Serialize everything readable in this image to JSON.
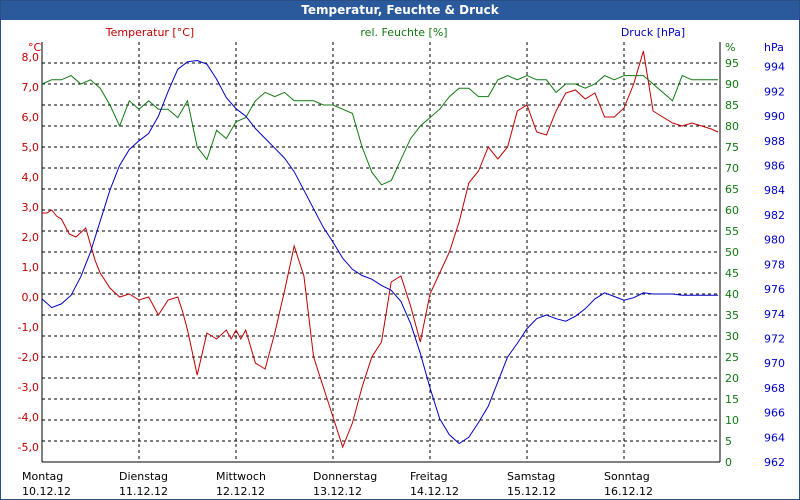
{
  "window": {
    "title": "Temperatur, Feuchte & Druck"
  },
  "colors": {
    "temperature": "#c00000",
    "humidity": "#117a11",
    "pressure": "#0000c8",
    "title_bg": "#2a5a9b"
  },
  "chart_data": {
    "type": "line",
    "title": "Temperatur, Feuchte & Druck",
    "grid": true,
    "x_ticks": [
      {
        "day": "Montag",
        "date": "10.12.12"
      },
      {
        "day": "Dienstag",
        "date": "11.12.12"
      },
      {
        "day": "Mittwoch",
        "date": "12.12.12"
      },
      {
        "day": "Donnerstag",
        "date": "13.12.12"
      },
      {
        "day": "Freitag",
        "date": "14.12.12"
      },
      {
        "day": "Samstag",
        "date": "15.12.12"
      },
      {
        "day": "Sonntag",
        "date": "16.12.12"
      }
    ],
    "axes": {
      "left": {
        "unit": "°C",
        "range": [
          -5.5,
          8.5
        ],
        "ticks": [
          "-5,0",
          "-4,0",
          "-3,0",
          "-2,0",
          "-1,0",
          "0,0",
          "1,0",
          "2,0",
          "3,0",
          "4,0",
          "5,0",
          "6,0",
          "7,0",
          "8,0"
        ]
      },
      "middle": {
        "unit": "%",
        "range": [
          0,
          100
        ],
        "ticks": [
          "0",
          "5",
          "10",
          "15",
          "20",
          "25",
          "30",
          "35",
          "40",
          "45",
          "50",
          "55",
          "60",
          "65",
          "70",
          "75",
          "80",
          "85",
          "90",
          "95"
        ]
      },
      "right": {
        "unit": "hPa",
        "range": [
          962,
          996
        ],
        "ticks": [
          "962",
          "964",
          "966",
          "968",
          "970",
          "972",
          "974",
          "976",
          "978",
          "980",
          "982",
          "984",
          "986",
          "988",
          "990",
          "992",
          "994"
        ]
      }
    },
    "series": [
      {
        "name": "Temperatur [°C]",
        "axis": "left",
        "x": [
          0,
          0.05,
          0.1,
          0.15,
          0.2,
          0.28,
          0.35,
          0.45,
          0.55,
          0.6,
          0.7,
          0.8,
          0.9,
          1.0,
          1.1,
          1.2,
          1.3,
          1.4,
          1.45,
          1.5,
          1.6,
          1.7,
          1.8,
          1.9,
          1.95,
          2.0,
          2.05,
          2.1,
          2.2,
          2.3,
          2.4,
          2.5,
          2.6,
          2.7,
          2.8,
          2.9,
          3.0,
          3.1,
          3.2,
          3.3,
          3.4,
          3.5,
          3.6,
          3.7,
          3.8,
          3.9,
          4.0,
          4.1,
          4.2,
          4.3,
          4.4,
          4.5,
          4.6,
          4.7,
          4.8,
          4.9,
          5.0,
          5.1,
          5.2,
          5.3,
          5.4,
          5.5,
          5.6,
          5.7,
          5.8,
          5.9,
          6.0,
          6.1,
          6.2,
          6.3,
          6.4,
          6.5,
          6.6,
          6.7,
          6.8,
          6.9,
          7.0
        ],
        "values": [
          2.8,
          2.8,
          2.9,
          2.7,
          2.6,
          2.1,
          2.0,
          2.3,
          1.2,
          0.8,
          0.3,
          0.0,
          0.1,
          -0.1,
          0.0,
          -0.6,
          -0.1,
          0.0,
          -0.5,
          -1.1,
          -2.6,
          -1.2,
          -1.4,
          -1.1,
          -1.4,
          -1.1,
          -1.4,
          -1.1,
          -2.2,
          -2.4,
          -1.2,
          0.2,
          1.7,
          0.7,
          -2.0,
          -3.0,
          -4.0,
          -5.0,
          -4.2,
          -3.0,
          -2.0,
          -1.5,
          0.5,
          0.7,
          -0.3,
          -1.5,
          0.1,
          0.8,
          1.5,
          2.5,
          3.8,
          4.2,
          5.0,
          4.6,
          5.0,
          6.2,
          6.4,
          5.5,
          5.4,
          6.2,
          6.8,
          6.9,
          6.6,
          6.8,
          6.0,
          6.0,
          6.3,
          7.1,
          8.2,
          6.2,
          6.0,
          5.8,
          5.7,
          5.8,
          5.7,
          5.6,
          5.5
        ]
      },
      {
        "name": "rel. Feuchte [%]",
        "axis": "middle",
        "x": [
          0,
          0.1,
          0.2,
          0.3,
          0.4,
          0.5,
          0.6,
          0.7,
          0.8,
          0.9,
          1.0,
          1.1,
          1.2,
          1.3,
          1.4,
          1.5,
          1.6,
          1.7,
          1.8,
          1.9,
          2.0,
          2.1,
          2.2,
          2.3,
          2.4,
          2.5,
          2.6,
          2.7,
          2.8,
          2.9,
          3.0,
          3.1,
          3.2,
          3.3,
          3.4,
          3.5,
          3.6,
          3.7,
          3.8,
          3.9,
          4.0,
          4.1,
          4.2,
          4.3,
          4.4,
          4.5,
          4.6,
          4.7,
          4.8,
          4.9,
          5.0,
          5.1,
          5.2,
          5.3,
          5.4,
          5.5,
          5.6,
          5.7,
          5.8,
          5.9,
          6.0,
          6.1,
          6.2,
          6.3,
          6.4,
          6.5,
          6.6,
          6.7,
          6.8,
          6.9,
          7.0
        ],
        "values": [
          90,
          91,
          91,
          92,
          90,
          91,
          89,
          85,
          80,
          86,
          84,
          86,
          84,
          84,
          82,
          86,
          75,
          72,
          79,
          77,
          81,
          82,
          86,
          88,
          87,
          88,
          86,
          86,
          86,
          85,
          85,
          84,
          83,
          75,
          69,
          66,
          67,
          72,
          77,
          80,
          82,
          84,
          87,
          89,
          89,
          87,
          87,
          91,
          92,
          91,
          92,
          91,
          91,
          88,
          90,
          90,
          89,
          90,
          92,
          91,
          92,
          92,
          92,
          90,
          88,
          86,
          92,
          91,
          91,
          91,
          91
        ]
      },
      {
        "name": "Druck [hPa]",
        "axis": "right",
        "x": [
          0,
          0.1,
          0.2,
          0.3,
          0.4,
          0.5,
          0.6,
          0.7,
          0.8,
          0.9,
          1.0,
          1.1,
          1.2,
          1.3,
          1.4,
          1.5,
          1.6,
          1.7,
          1.8,
          1.9,
          2.0,
          2.1,
          2.2,
          2.3,
          2.4,
          2.5,
          2.6,
          2.7,
          2.8,
          2.9,
          3.0,
          3.1,
          3.2,
          3.3,
          3.4,
          3.5,
          3.6,
          3.7,
          3.8,
          3.9,
          4.0,
          4.1,
          4.2,
          4.3,
          4.4,
          4.5,
          4.6,
          4.7,
          4.8,
          4.9,
          5.0,
          5.1,
          5.2,
          5.3,
          5.4,
          5.5,
          5.6,
          5.7,
          5.8,
          5.9,
          6.0,
          6.1,
          6.2,
          6.3,
          6.4,
          6.5,
          6.6,
          6.7,
          6.8,
          6.9,
          7.0
        ],
        "values": [
          975.2,
          974.5,
          974.8,
          975.5,
          977,
          979,
          981.5,
          984,
          986,
          987.3,
          988,
          988.6,
          990,
          992,
          993.8,
          994.4,
          994.5,
          994.2,
          993,
          991.5,
          990.6,
          990,
          989,
          988.2,
          987.4,
          986.6,
          985.5,
          984,
          982.5,
          981,
          979.8,
          978.5,
          977.6,
          977.1,
          976.8,
          976.3,
          975.9,
          975,
          973.2,
          970.8,
          968,
          965.5,
          964.2,
          963.5,
          964,
          965.2,
          966.5,
          968.5,
          970.5,
          971.6,
          972.8,
          973.6,
          973.9,
          973.6,
          973.4,
          973.8,
          974.4,
          975.2,
          975.7,
          975.4,
          975.1,
          975.3,
          975.7,
          975.6,
          975.6,
          975.6,
          975.5,
          975.5,
          975.5,
          975.5,
          975.5
        ]
      }
    ]
  }
}
